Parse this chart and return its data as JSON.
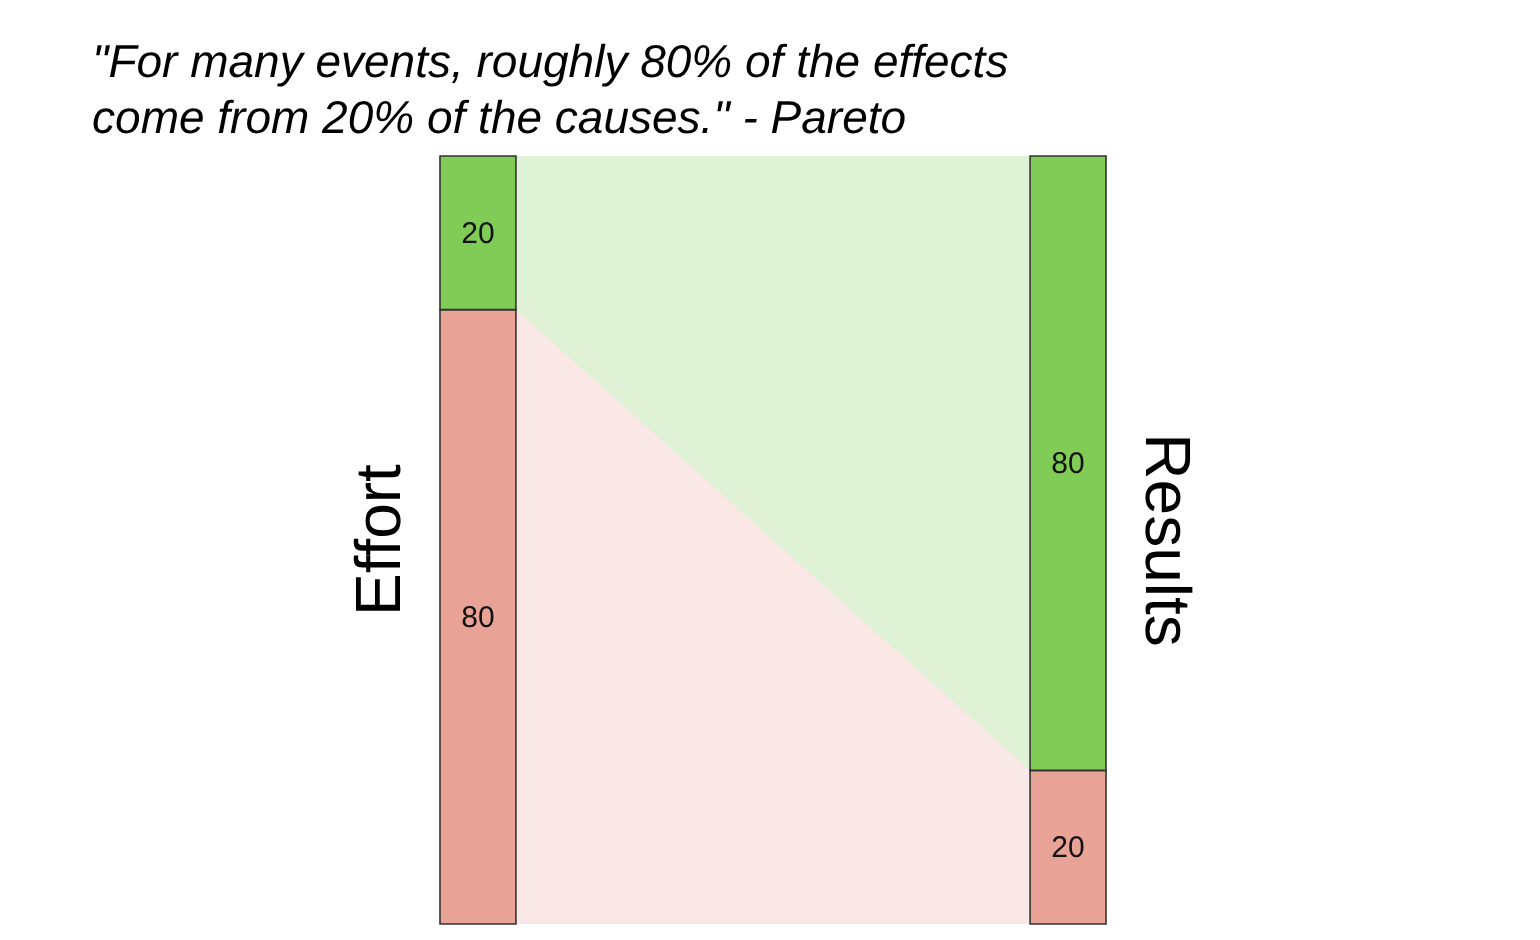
{
  "chart_data": {
    "type": "bar",
    "title": "\"For many events, roughly 80% of the effects\ncome from 20% of the causes.\" - Pareto",
    "categories": [
      "Effort",
      "Results"
    ],
    "stacked": true,
    "data_labels": true,
    "ylim": [
      0,
      100
    ],
    "series": [
      {
        "color": "#e9a396",
        "values": [
          80,
          20
        ]
      },
      {
        "color": "#80cc56",
        "values": [
          20,
          80
        ]
      }
    ]
  }
}
